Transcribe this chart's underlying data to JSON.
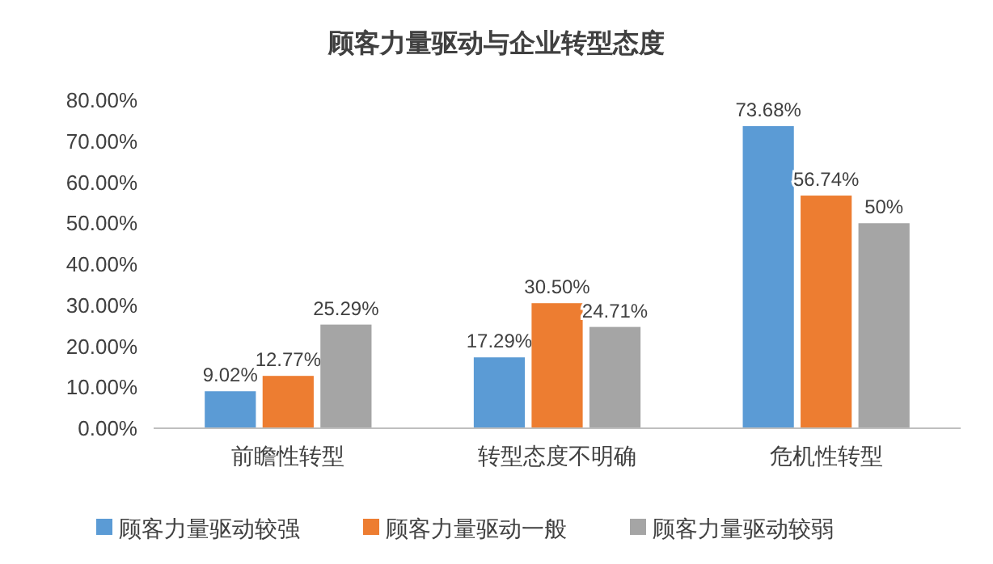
{
  "chart_data": {
    "type": "bar",
    "title": "顾客力量驱动与企业转型态度",
    "categories": [
      "前瞻性转型",
      "转型态度不明确",
      "危机性转型"
    ],
    "series": [
      {
        "name": "顾客力量驱动较强",
        "color": "#5b9bd5",
        "values": [
          9.02,
          17.29,
          73.68
        ],
        "value_labels": [
          "9.02%",
          "17.29%",
          "73.68%"
        ]
      },
      {
        "name": "顾客力量驱动一般",
        "color": "#ed7d31",
        "values": [
          12.77,
          30.5,
          56.74
        ],
        "value_labels": [
          "12.77%",
          "30.50%",
          "56.74%"
        ]
      },
      {
        "name": "顾客力量驱动较弱",
        "color": "#a5a5a5",
        "values": [
          25.29,
          24.71,
          50
        ],
        "value_labels": [
          "25.29%",
          "24.71%",
          "50%"
        ]
      }
    ],
    "ylim": [
      0,
      80
    ],
    "yticks": [
      {
        "value": 0,
        "label": "0.00%"
      },
      {
        "value": 10,
        "label": "10.00%"
      },
      {
        "value": 20,
        "label": "20.00%"
      },
      {
        "value": 30,
        "label": "30.00%"
      },
      {
        "value": 40,
        "label": "40.00%"
      },
      {
        "value": 50,
        "label": "50.00%"
      },
      {
        "value": 60,
        "label": "60.00%"
      },
      {
        "value": 70,
        "label": "70.00%"
      },
      {
        "value": 80,
        "label": "80.00%"
      }
    ],
    "legend": "bottom"
  }
}
